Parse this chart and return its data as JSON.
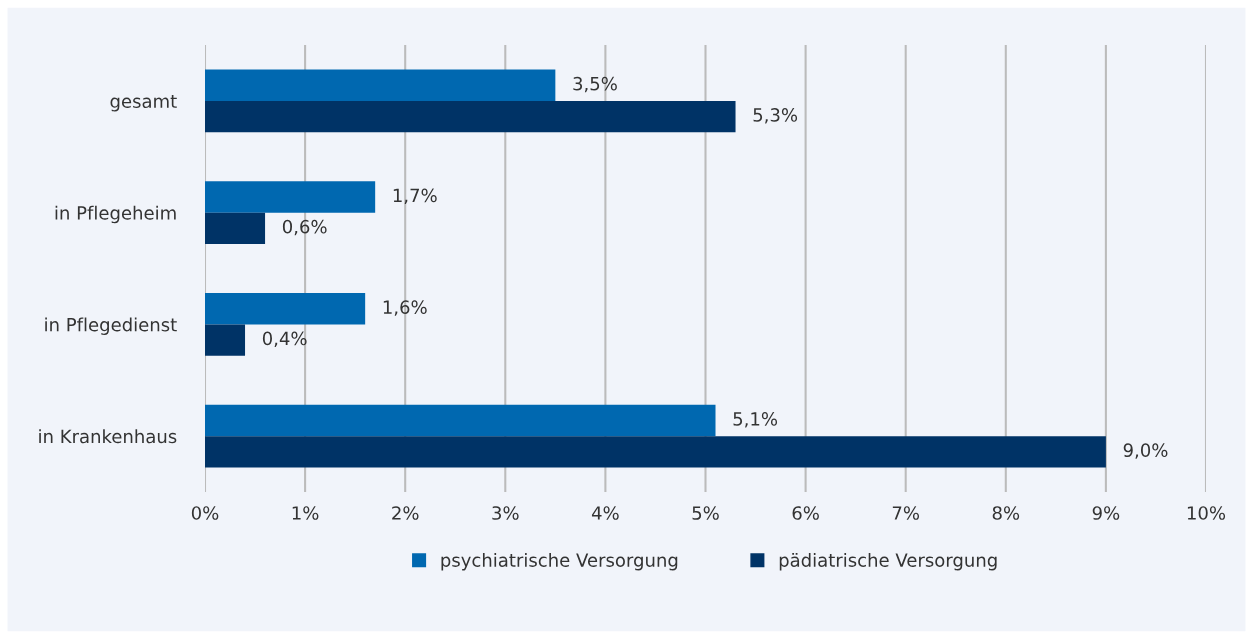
{
  "chart_data": {
    "type": "bar",
    "orientation": "horizontal",
    "categories": [
      "gesamt",
      "in Pflegeheim",
      "in Pflegedienst",
      "in Krankenhaus"
    ],
    "series": [
      {
        "name": "psychiatrische Versorgung",
        "color": "#0068b0",
        "values": [
          3.5,
          1.7,
          1.6,
          5.1
        ],
        "value_labels": [
          "3,5%",
          "1,7%",
          "1,6%",
          "5,1%"
        ]
      },
      {
        "name": "pädiatrische Versorgung",
        "color": "#003366",
        "values": [
          5.3,
          0.6,
          0.4,
          9.0
        ],
        "value_labels": [
          "5,3%",
          "0,6%",
          "0,4%",
          "9,0%"
        ]
      }
    ],
    "xlim": [
      0,
      10
    ],
    "xticks": [
      {
        "value": 0,
        "label": "0%"
      },
      {
        "value": 1,
        "label": "1%"
      },
      {
        "value": 2,
        "label": "2%"
      },
      {
        "value": 3,
        "label": "3%"
      },
      {
        "value": 4,
        "label": "4%"
      },
      {
        "value": 5,
        "label": "5%"
      },
      {
        "value": 6,
        "label": "6%"
      },
      {
        "value": 7,
        "label": "7%"
      },
      {
        "value": 8,
        "label": "8%"
      },
      {
        "value": 9,
        "label": "9%"
      },
      {
        "value": 10,
        "label": "10%"
      }
    ],
    "grid": "x",
    "legend": "bottom"
  }
}
